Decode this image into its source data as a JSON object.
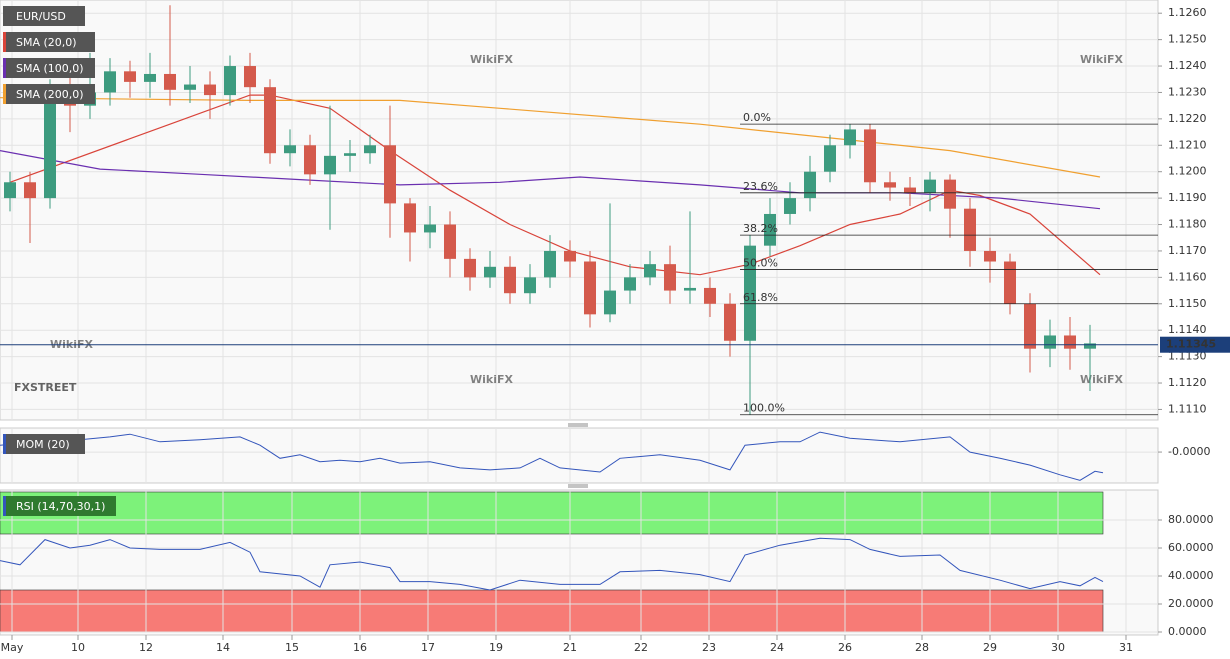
{
  "chart_data": [
    {
      "type": "candlestick",
      "title": "EUR/USD",
      "up_color": "#3d9b7f",
      "down_color": "#d45a4c",
      "x": [
        1,
        3,
        5,
        7,
        9,
        11,
        13,
        15,
        17,
        19,
        21,
        23,
        25,
        27,
        29,
        31,
        33,
        35,
        37,
        39,
        41,
        43,
        45,
        47,
        49,
        51,
        53,
        55,
        57,
        59,
        61,
        63,
        65,
        67,
        69,
        71,
        73,
        75,
        77,
        79,
        81,
        83,
        85,
        87,
        89,
        91,
        93,
        95,
        97,
        99,
        101,
        103,
        105,
        107,
        109
      ],
      "open": [
        1.119,
        1.1196,
        1.119,
        1.1228,
        1.1225,
        1.123,
        1.1238,
        1.1234,
        1.1237,
        1.1231,
        1.1233,
        1.1229,
        1.124,
        1.1232,
        1.1207,
        1.121,
        1.1199,
        1.1206,
        1.1207,
        1.121,
        1.1188,
        1.1177,
        1.118,
        1.1167,
        1.116,
        1.1164,
        1.1154,
        1.116,
        1.117,
        1.1166,
        1.1146,
        1.1155,
        1.116,
        1.1165,
        1.1155,
        1.1156,
        1.115,
        1.1136,
        1.1172,
        1.1184,
        1.119,
        1.12,
        1.121,
        1.1216,
        1.1196,
        1.1194,
        1.1192,
        1.1197,
        1.1186,
        1.117,
        1.1166,
        1.115,
        1.1133,
        1.1138,
        1.1133
      ],
      "high": [
        1.12,
        1.12,
        1.1235,
        1.124,
        1.1245,
        1.1243,
        1.1242,
        1.1245,
        1.1263,
        1.124,
        1.1238,
        1.1244,
        1.1245,
        1.1235,
        1.1216,
        1.1214,
        1.1225,
        1.1212,
        1.1214,
        1.1225,
        1.119,
        1.1187,
        1.1185,
        1.1171,
        1.117,
        1.1168,
        1.1165,
        1.1176,
        1.1174,
        1.117,
        1.1188,
        1.1165,
        1.117,
        1.1172,
        1.1185,
        1.116,
        1.1154,
        1.1176,
        1.119,
        1.1196,
        1.1206,
        1.1214,
        1.1218,
        1.1218,
        1.12,
        1.1198,
        1.12,
        1.1199,
        1.119,
        1.1175,
        1.1169,
        1.1154,
        1.1144,
        1.1145,
        1.1142
      ],
      "low": [
        1.1185,
        1.1173,
        1.1186,
        1.1215,
        1.122,
        1.1225,
        1.1228,
        1.1228,
        1.1225,
        1.1226,
        1.122,
        1.1225,
        1.1226,
        1.1203,
        1.1202,
        1.1195,
        1.1178,
        1.12,
        1.1203,
        1.1175,
        1.1166,
        1.1171,
        1.116,
        1.1155,
        1.1156,
        1.115,
        1.115,
        1.1156,
        1.116,
        1.1141,
        1.1143,
        1.115,
        1.1157,
        1.115,
        1.115,
        1.1145,
        1.113,
        1.1108,
        1.1168,
        1.118,
        1.1185,
        1.1196,
        1.1205,
        1.1192,
        1.1189,
        1.1187,
        1.1185,
        1.1175,
        1.1164,
        1.1158,
        1.1146,
        1.1124,
        1.1126,
        1.1125,
        1.1117
      ],
      "close": [
        1.1196,
        1.119,
        1.1228,
        1.1225,
        1.123,
        1.1238,
        1.1234,
        1.1237,
        1.1231,
        1.1233,
        1.1229,
        1.124,
        1.1232,
        1.1207,
        1.121,
        1.1199,
        1.1206,
        1.1207,
        1.121,
        1.1188,
        1.1177,
        1.118,
        1.1167,
        1.116,
        1.1164,
        1.1154,
        1.116,
        1.117,
        1.1166,
        1.1146,
        1.1155,
        1.116,
        1.1165,
        1.1155,
        1.1156,
        1.115,
        1.1136,
        1.1172,
        1.1184,
        1.119,
        1.12,
        1.121,
        1.1216,
        1.1196,
        1.1194,
        1.1192,
        1.1197,
        1.1186,
        1.117,
        1.1166,
        1.115,
        1.1133,
        1.1138,
        1.1133,
        1.1135
      ],
      "series": [
        {
          "name": "SMA (20,0)",
          "color": "#d9443a",
          "x": [
            1,
            25,
            27,
            33,
            39,
            45,
            51,
            57,
            63,
            70,
            75,
            80,
            85,
            90,
            95,
            98,
            103,
            110
          ],
          "values": [
            1.1196,
            1.1229,
            1.1229,
            1.1224,
            1.1208,
            1.1193,
            1.118,
            1.117,
            1.1164,
            1.1161,
            1.1165,
            1.1172,
            1.118,
            1.1184,
            1.1193,
            1.1191,
            1.1184,
            1.1161
          ]
        },
        {
          "name": "SMA (100,0)",
          "color": "#6a2fb0",
          "x": [
            0,
            10,
            20,
            30,
            40,
            50,
            58,
            70,
            80,
            90,
            100,
            110
          ],
          "values": [
            1.1208,
            1.1201,
            1.1199,
            1.1197,
            1.1195,
            1.1196,
            1.1198,
            1.1195,
            1.1192,
            1.1192,
            1.119,
            1.1186
          ]
        },
        {
          "name": "SMA (200,0)",
          "color": "#f0a030",
          "x": [
            0,
            25,
            40,
            50,
            70,
            85,
            95,
            110
          ],
          "values": [
            1.1228,
            1.1227,
            1.1227,
            1.1224,
            1.1218,
            1.1212,
            1.1208,
            1.1198
          ]
        }
      ],
      "fib_from": 74,
      "fib_levels": [
        {
          "label": "0.0%",
          "value": 1.1218
        },
        {
          "label": "23.6%",
          "value": 1.1192
        },
        {
          "label": "38.2%",
          "value": 1.1176
        },
        {
          "label": "50.0%",
          "value": 1.1163
        },
        {
          "label": "61.8%",
          "value": 1.115
        },
        {
          "label": "100.0%",
          "value": 1.1108
        }
      ],
      "last_price": 1.11345,
      "xlim": [
        0,
        115.8
      ],
      "ylim": [
        1.1106,
        1.1265
      ],
      "yticks": [
        {
          "value": 1.126,
          "label": "1.1260"
        },
        {
          "value": 1.125,
          "label": "1.1250"
        },
        {
          "value": 1.124,
          "label": "1.1240"
        },
        {
          "value": 1.123,
          "label": "1.1230"
        },
        {
          "value": 1.122,
          "label": "1.1220"
        },
        {
          "value": 1.121,
          "label": "1.1210"
        },
        {
          "value": 1.12,
          "label": "1.1200"
        },
        {
          "value": 1.119,
          "label": "1.1190"
        },
        {
          "value": 1.118,
          "label": "1.1180"
        },
        {
          "value": 1.117,
          "label": "1.1170"
        },
        {
          "value": 1.116,
          "label": "1.1160"
        },
        {
          "value": 1.115,
          "label": "1.1150"
        },
        {
          "value": 1.114,
          "label": "1.1140"
        },
        {
          "value": 1.113,
          "label": "1.1130"
        },
        {
          "value": 1.112,
          "label": "1.1120"
        },
        {
          "value": 1.111,
          "label": "1.1110"
        }
      ],
      "grid": true,
      "watermark": "WikiFX",
      "logo": "FXSTREET"
    },
    {
      "type": "line",
      "title": "MOM (20)",
      "color": "#3355bb",
      "x": [
        0,
        4,
        8,
        11,
        13,
        16,
        20,
        24,
        26,
        28,
        30,
        32,
        34,
        36,
        38,
        40,
        43,
        46,
        49,
        52,
        54,
        56,
        60,
        62,
        66,
        70,
        73,
        74.5,
        78,
        80,
        82,
        85,
        90,
        95,
        97,
        100,
        103,
        106,
        108,
        109.5,
        110.3
      ],
      "values": [
        0.001,
        0.0015,
        0.0018,
        0.0022,
        0.0026,
        0.0015,
        0.0018,
        0.0022,
        0.001,
        -0.0009,
        -0.0004,
        -0.0014,
        -0.0012,
        -0.0014,
        -0.0009,
        -0.0016,
        -0.0014,
        -0.0023,
        -0.0026,
        -0.0023,
        -0.0009,
        -0.0023,
        -0.0029,
        -0.0009,
        -0.0004,
        -0.0012,
        -0.0026,
        0.001,
        0.0015,
        0.0015,
        0.0029,
        0.002,
        0.0015,
        0.0022,
        0,
        -0.0009,
        -0.0019,
        -0.0033,
        -0.0041,
        -0.0028,
        -0.003
      ],
      "xlim": [
        0,
        115.8
      ],
      "ylim": [
        -0.0045,
        0.0035
      ],
      "yticks": [
        {
          "value": 0,
          "label": "-0.0000"
        }
      ]
    },
    {
      "type": "line",
      "title": "RSI (14,70,30,1)",
      "color": "#3355bb",
      "x": [
        0,
        2,
        4.5,
        7,
        9,
        11,
        13,
        16,
        20,
        23,
        25,
        26,
        30,
        32,
        33,
        36,
        39,
        40,
        43,
        46,
        49,
        52,
        56,
        60,
        62,
        66,
        70,
        73,
        74.5,
        78,
        82,
        85,
        87,
        90,
        94,
        96,
        100,
        103,
        106,
        108,
        109.5,
        110.3
      ],
      "values": [
        51,
        48,
        66,
        60,
        62,
        66,
        60,
        59,
        59,
        64,
        57,
        43,
        40,
        32,
        48,
        50,
        46,
        36,
        36,
        34,
        30,
        37,
        34,
        34,
        43,
        44,
        41,
        36,
        55,
        62,
        67,
        66,
        59,
        54,
        55,
        44,
        37,
        31,
        36,
        33,
        39,
        36
      ],
      "zones": [
        {
          "from": 70,
          "to": 100,
          "color": "#7df27a"
        },
        {
          "from": 0,
          "to": 30,
          "color": "#f77b76"
        }
      ],
      "xlim": [
        0,
        115.8
      ],
      "ylim": [
        0,
        100
      ],
      "yticks": [
        {
          "value": 80,
          "label": "80.0000"
        },
        {
          "value": 60,
          "label": "60.0000"
        },
        {
          "value": 40,
          "label": "40.0000"
        },
        {
          "value": 20,
          "label": "20.0000"
        },
        {
          "value": 0,
          "label": "0.0000"
        }
      ],
      "xticks": [
        {
          "value": 1.2,
          "label": "May"
        },
        {
          "value": 7.8,
          "label": "10"
        },
        {
          "value": 14.6,
          "label": "12"
        },
        {
          "value": 22.3,
          "label": "14"
        },
        {
          "value": 29.2,
          "label": "15"
        },
        {
          "value": 36.0,
          "label": "16"
        },
        {
          "value": 42.8,
          "label": "17"
        },
        {
          "value": 49.6,
          "label": "19"
        },
        {
          "value": 57.0,
          "label": "21"
        },
        {
          "value": 64.1,
          "label": "22"
        },
        {
          "value": 70.9,
          "label": "23"
        },
        {
          "value": 77.7,
          "label": "24"
        },
        {
          "value": 84.5,
          "label": "26"
        },
        {
          "value": 92.2,
          "label": "28"
        },
        {
          "value": 99.0,
          "label": "29"
        },
        {
          "value": 105.8,
          "label": "30"
        },
        {
          "value": 112.6,
          "label": "31"
        }
      ]
    }
  ]
}
